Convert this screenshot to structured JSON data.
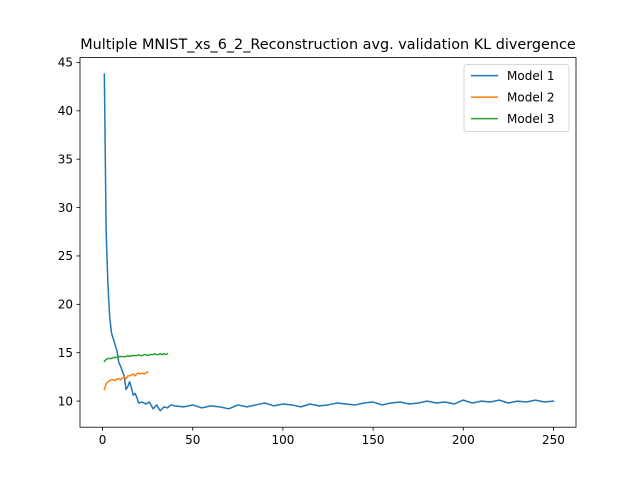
{
  "chart_data": {
    "type": "line",
    "title": "Multiple MNIST_xs_6_2_Reconstruction avg. validation KL divergence",
    "xlabel": "",
    "ylabel": "",
    "xlim": [
      -12.5,
      262.5
    ],
    "ylim": [
      7.3,
      45.5
    ],
    "xticks": [
      0,
      50,
      100,
      150,
      200,
      250
    ],
    "yticks": [
      10,
      15,
      20,
      25,
      30,
      35,
      40,
      45
    ],
    "grid": false,
    "legend_position": "top-right",
    "series": [
      {
        "name": "Model 1",
        "color": "#1f77b4",
        "x": [
          1,
          2,
          3,
          4,
          5,
          6,
          7,
          8,
          9,
          10,
          11,
          12,
          13,
          14,
          15,
          16,
          17,
          18,
          19,
          20,
          22,
          24,
          26,
          28,
          30,
          32,
          34,
          36,
          38,
          40,
          45,
          50,
          55,
          60,
          65,
          70,
          75,
          80,
          85,
          90,
          95,
          100,
          105,
          110,
          115,
          120,
          125,
          130,
          135,
          140,
          145,
          150,
          155,
          160,
          165,
          170,
          175,
          180,
          185,
          190,
          195,
          200,
          205,
          210,
          215,
          220,
          225,
          230,
          235,
          240,
          245,
          250
        ],
        "y": [
          43.8,
          27.5,
          22.0,
          18.6,
          17.0,
          16.4,
          15.8,
          15.2,
          14.0,
          13.6,
          13.1,
          12.6,
          11.2,
          11.5,
          12.0,
          11.4,
          10.6,
          10.8,
          10.4,
          9.8,
          9.9,
          9.7,
          9.9,
          9.2,
          9.6,
          9.0,
          9.4,
          9.3,
          9.6,
          9.5,
          9.4,
          9.6,
          9.3,
          9.5,
          9.4,
          9.2,
          9.6,
          9.4,
          9.6,
          9.8,
          9.5,
          9.7,
          9.6,
          9.4,
          9.7,
          9.5,
          9.6,
          9.8,
          9.7,
          9.6,
          9.8,
          9.9,
          9.6,
          9.8,
          9.9,
          9.7,
          9.8,
          10.0,
          9.8,
          9.9,
          9.7,
          10.1,
          9.8,
          10.0,
          9.9,
          10.1,
          9.8,
          10.0,
          9.9,
          10.1,
          9.9,
          10.0
        ]
      },
      {
        "name": "Model 2",
        "color": "#ff7f0e",
        "x": [
          1,
          2,
          3,
          4,
          5,
          6,
          7,
          8,
          9,
          10,
          11,
          12,
          13,
          14,
          15,
          16,
          17,
          18,
          19,
          20,
          21,
          22,
          23,
          24,
          25
        ],
        "y": [
          11.2,
          11.8,
          12.0,
          12.1,
          12.2,
          12.2,
          12.1,
          12.3,
          12.3,
          12.2,
          12.4,
          12.5,
          12.3,
          12.6,
          12.6,
          12.7,
          12.8,
          12.6,
          12.8,
          12.9,
          12.8,
          12.9,
          12.8,
          12.9,
          13.0
        ]
      },
      {
        "name": "Model 3",
        "color": "#2ca02c",
        "x": [
          1,
          2,
          3,
          4,
          5,
          6,
          7,
          8,
          9,
          10,
          11,
          12,
          13,
          14,
          15,
          16,
          17,
          18,
          19,
          20,
          21,
          22,
          23,
          24,
          25,
          26,
          27,
          28,
          29,
          30,
          31,
          32,
          33,
          34,
          35,
          36
        ],
        "y": [
          14.1,
          14.3,
          14.4,
          14.4,
          14.4,
          14.5,
          14.5,
          14.5,
          14.6,
          14.6,
          14.6,
          14.6,
          14.6,
          14.7,
          14.6,
          14.7,
          14.7,
          14.7,
          14.7,
          14.8,
          14.7,
          14.7,
          14.8,
          14.8,
          14.7,
          14.8,
          14.8,
          14.8,
          14.9,
          14.8,
          14.8,
          14.9,
          14.8,
          14.9,
          14.8,
          14.9
        ]
      }
    ]
  }
}
